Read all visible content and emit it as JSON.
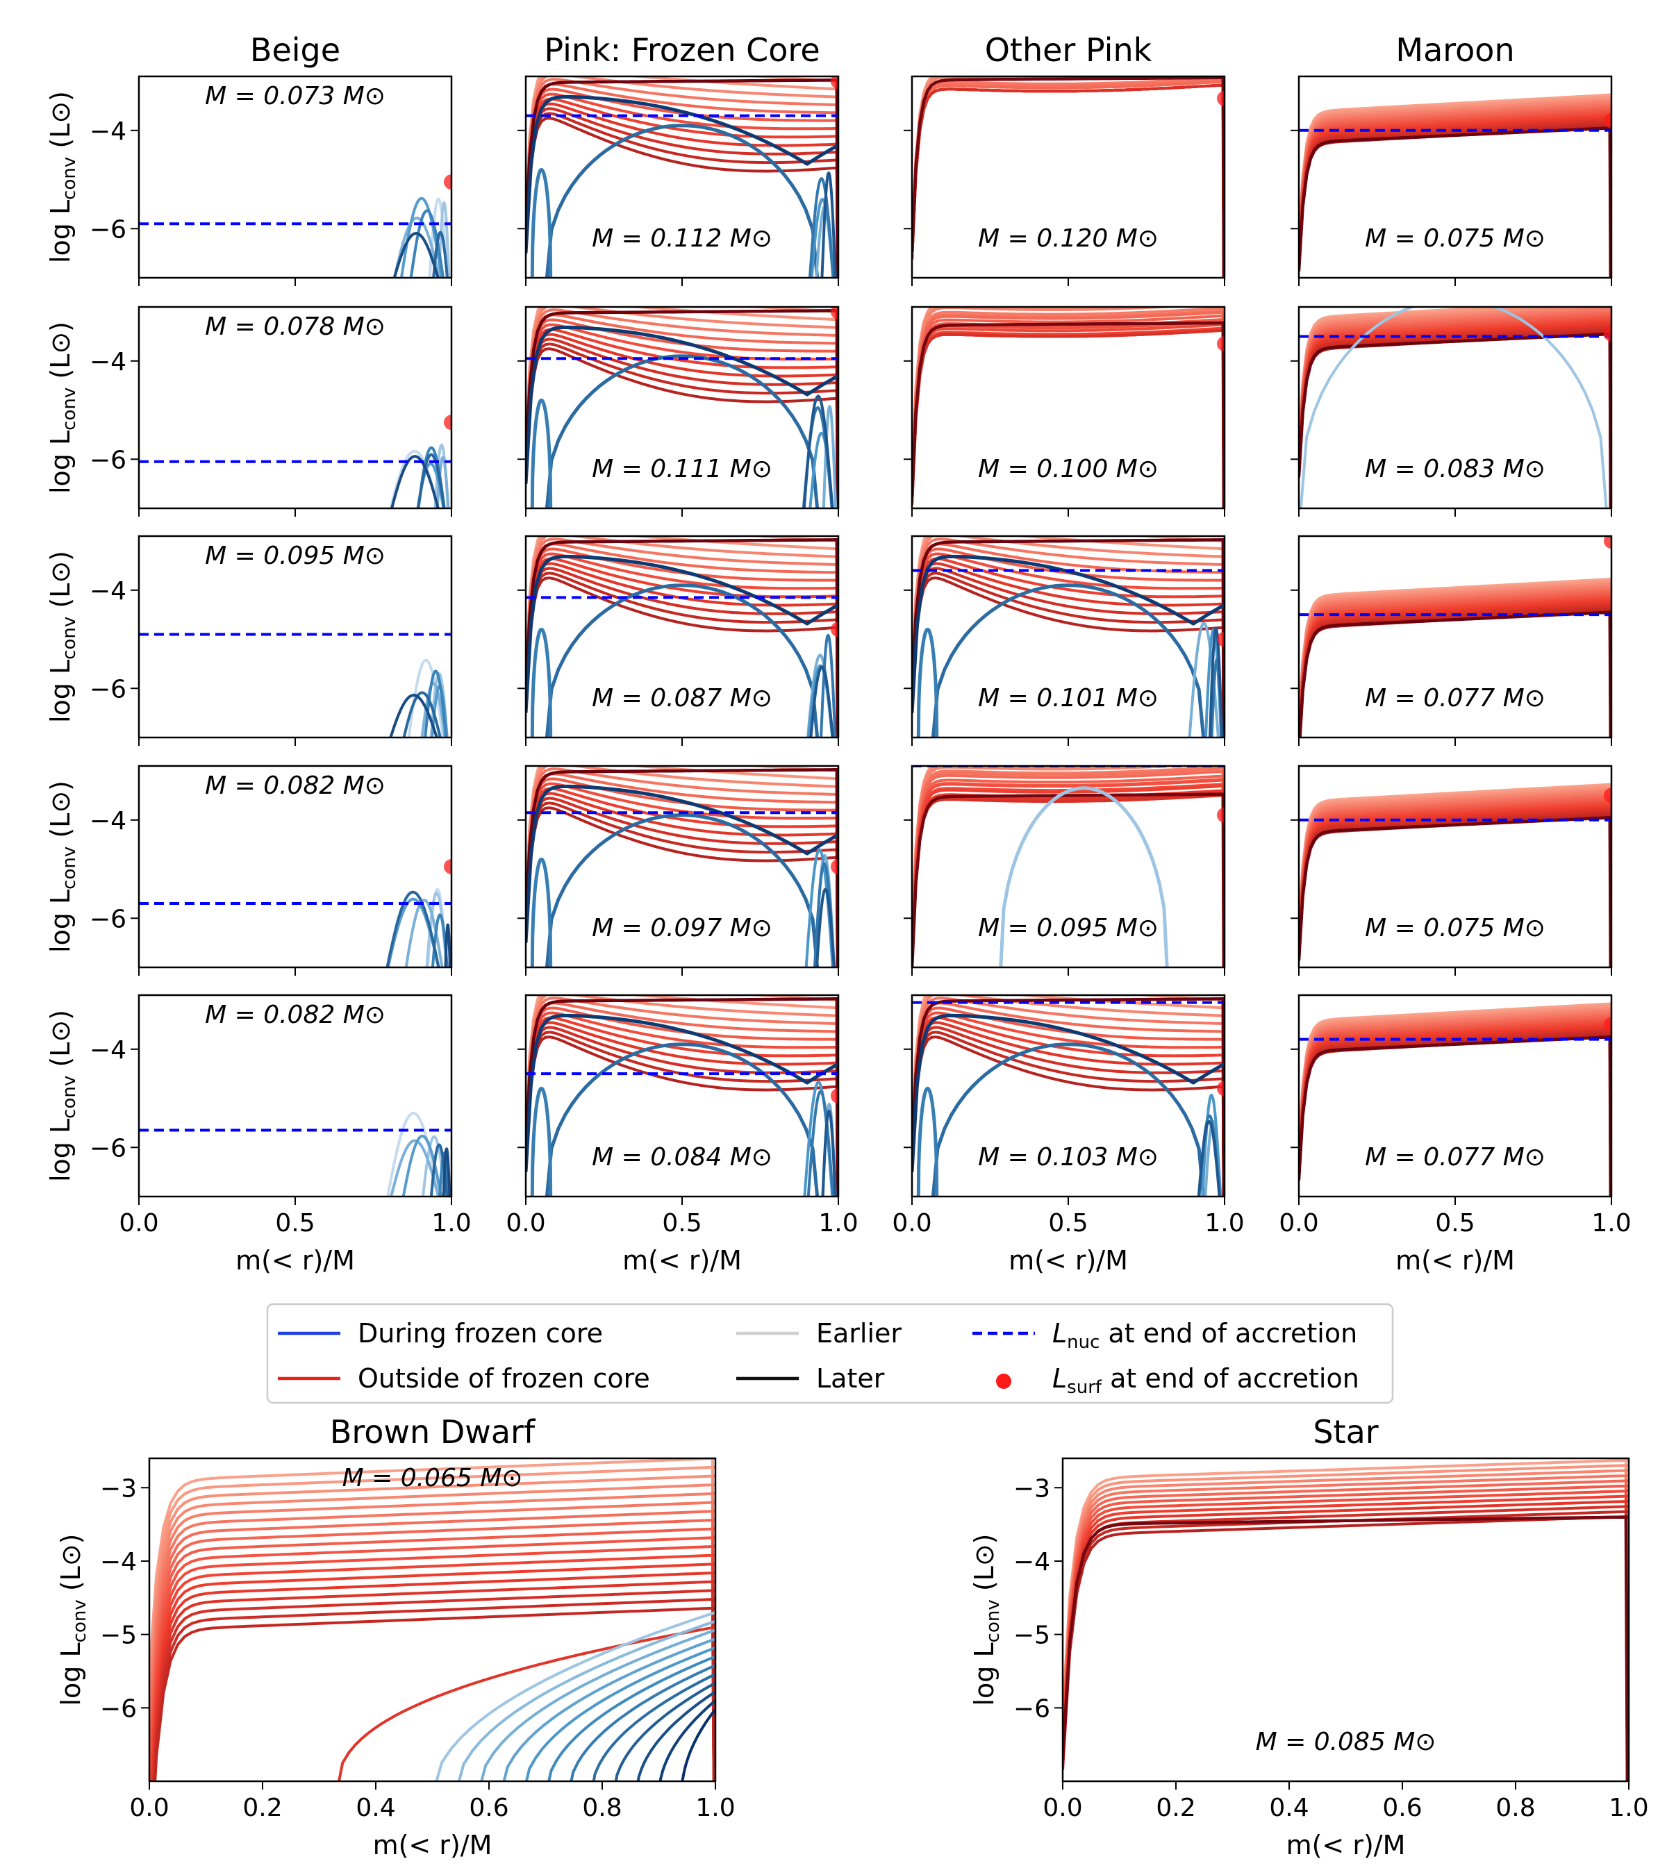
{
  "figure": {
    "xlabel": "m(< r)/M",
    "ylabel": "log L_conv (L⊙)",
    "ylabel_main": "log L",
    "ylabel_sub": "conv",
    "ylabel_unit": "(L⊙)"
  },
  "colors": {
    "during_frozen": "#1f3fe0",
    "outside_frozen": "#e8231c",
    "earlier": "#d0d0d0",
    "later": "#111111",
    "lnuc": "#0000ff",
    "lsurf": "#ff1a1a",
    "reds_light": "#fcbba1",
    "reds_mid": "#ef3b2c",
    "reds_dark": "#67000d",
    "blues_light": "#c6dbef",
    "blues_mid": "#4292c6",
    "blues_dark": "#08306b"
  },
  "legend": {
    "items": [
      {
        "label": "During frozen core",
        "kind": "line",
        "color": "#1f3fe0"
      },
      {
        "label": "Outside of frozen core",
        "kind": "line",
        "color": "#e8231c"
      },
      {
        "label": "Earlier",
        "kind": "line",
        "color": "#d0d0d0"
      },
      {
        "label": "Later",
        "kind": "line",
        "color": "#111111"
      },
      {
        "label_main": "L",
        "label_sub": "nuc",
        "label_rest": " at end of accretion",
        "kind": "dashed",
        "color": "#0000ff"
      },
      {
        "label_main": "L",
        "label_sub": "surf",
        "label_rest": " at end of accretion",
        "kind": "dot",
        "color": "#ff1a1a"
      }
    ]
  },
  "chart_data": [
    {
      "type": "line",
      "panel": "grid",
      "row": 0,
      "col": 0,
      "title": "Beige",
      "mass_label": "M = 0.073 M⊙",
      "mass": 0.073,
      "ylim": [
        -7,
        -2.9
      ],
      "xlim": [
        0,
        1
      ],
      "lnuc": -5.9,
      "lsurf": -5.05,
      "regime": "blue_edge"
    },
    {
      "type": "line",
      "panel": "grid",
      "row": 0,
      "col": 1,
      "title": "Pink: Frozen Core",
      "mass_label": "M = 0.112 M⊙",
      "mass": 0.112,
      "ylim": [
        -7,
        -2.9
      ],
      "xlim": [
        0,
        1
      ],
      "lnuc": -3.7,
      "lsurf": -3.0,
      "regime": "frozen_core"
    },
    {
      "type": "line",
      "panel": "grid",
      "row": 0,
      "col": 2,
      "title": "Other Pink",
      "mass_label": "M = 0.120 M⊙",
      "mass": 0.12,
      "ylim": [
        -7,
        -2.9
      ],
      "xlim": [
        0,
        1
      ],
      "lnuc": null,
      "lsurf": -3.35,
      "regime": "red_plateau"
    },
    {
      "type": "line",
      "panel": "grid",
      "row": 0,
      "col": 3,
      "title": "Maroon",
      "mass_label": "M = 0.075 M⊙",
      "mass": 0.075,
      "ylim": [
        -7,
        -2.9
      ],
      "xlim": [
        0,
        1
      ],
      "lnuc": -4.0,
      "lsurf": -3.8,
      "regime": "maroon"
    },
    {
      "type": "line",
      "panel": "grid",
      "row": 1,
      "col": 0,
      "mass_label": "M = 0.078 M⊙",
      "mass": 0.078,
      "ylim": [
        -7,
        -2.9
      ],
      "xlim": [
        0,
        1
      ],
      "lnuc": -6.05,
      "lsurf": -5.25,
      "regime": "blue_edge"
    },
    {
      "type": "line",
      "panel": "grid",
      "row": 1,
      "col": 1,
      "mass_label": "M = 0.111 M⊙",
      "mass": 0.111,
      "ylim": [
        -7,
        -2.9
      ],
      "xlim": [
        0,
        1
      ],
      "lnuc": -3.95,
      "lsurf": -3.0,
      "regime": "frozen_core"
    },
    {
      "type": "line",
      "panel": "grid",
      "row": 1,
      "col": 2,
      "mass_label": "M = 0.100 M⊙",
      "mass": 0.1,
      "ylim": [
        -7,
        -2.9
      ],
      "xlim": [
        0,
        1
      ],
      "lnuc": null,
      "lsurf": -3.65,
      "regime": "red_plateau"
    },
    {
      "type": "line",
      "panel": "grid",
      "row": 1,
      "col": 3,
      "mass_label": "M = 0.083 M⊙",
      "mass": 0.083,
      "ylim": [
        -7,
        -2.9
      ],
      "xlim": [
        0,
        1
      ],
      "lnuc": -3.5,
      "lsurf": -3.45,
      "regime": "maroon"
    },
    {
      "type": "line",
      "panel": "grid",
      "row": 2,
      "col": 0,
      "mass_label": "M = 0.095 M⊙",
      "mass": 0.095,
      "ylim": [
        -7,
        -2.9
      ],
      "xlim": [
        0,
        1
      ],
      "lnuc": -4.9,
      "lsurf": null,
      "regime": "blue_edge"
    },
    {
      "type": "line",
      "panel": "grid",
      "row": 2,
      "col": 1,
      "mass_label": "M = 0.087 M⊙",
      "mass": 0.087,
      "ylim": [
        -7,
        -2.9
      ],
      "xlim": [
        0,
        1
      ],
      "lnuc": -4.15,
      "lsurf": -4.8,
      "regime": "frozen_core"
    },
    {
      "type": "line",
      "panel": "grid",
      "row": 2,
      "col": 2,
      "mass_label": "M = 0.101 M⊙",
      "mass": 0.101,
      "ylim": [
        -7,
        -2.9
      ],
      "xlim": [
        0,
        1
      ],
      "lnuc": -3.6,
      "lsurf": -5.0,
      "regime": "frozen_core"
    },
    {
      "type": "line",
      "panel": "grid",
      "row": 2,
      "col": 3,
      "mass_label": "M = 0.077 M⊙",
      "mass": 0.077,
      "ylim": [
        -7,
        -2.9
      ],
      "xlim": [
        0,
        1
      ],
      "lnuc": -4.5,
      "lsurf": -3.0,
      "regime": "maroon"
    },
    {
      "type": "line",
      "panel": "grid",
      "row": 3,
      "col": 0,
      "mass_label": "M = 0.082 M⊙",
      "mass": 0.082,
      "ylim": [
        -7,
        -2.9
      ],
      "xlim": [
        0,
        1
      ],
      "lnuc": -5.7,
      "lsurf": -4.95,
      "regime": "blue_edge"
    },
    {
      "type": "line",
      "panel": "grid",
      "row": 3,
      "col": 1,
      "mass_label": "M = 0.097 M⊙",
      "mass": 0.097,
      "ylim": [
        -7,
        -2.9
      ],
      "xlim": [
        0,
        1
      ],
      "lnuc": -3.85,
      "lsurf": -4.95,
      "regime": "frozen_core"
    },
    {
      "type": "line",
      "panel": "grid",
      "row": 3,
      "col": 2,
      "mass_label": "M = 0.095 M⊙",
      "mass": 0.095,
      "ylim": [
        -7,
        -2.9
      ],
      "xlim": [
        0,
        1
      ],
      "lnuc": -2.9,
      "lsurf": -3.9,
      "regime": "red_plateau"
    },
    {
      "type": "line",
      "panel": "grid",
      "row": 3,
      "col": 3,
      "mass_label": "M = 0.075 M⊙",
      "mass": 0.075,
      "ylim": [
        -7,
        -2.9
      ],
      "xlim": [
        0,
        1
      ],
      "lnuc": -4.0,
      "lsurf": -3.5,
      "regime": "maroon"
    },
    {
      "type": "line",
      "panel": "grid",
      "row": 4,
      "col": 0,
      "mass_label": "M = 0.082 M⊙",
      "mass": 0.082,
      "ylim": [
        -7,
        -2.9
      ],
      "xlim": [
        0,
        1
      ],
      "lnuc": -5.65,
      "lsurf": null,
      "regime": "blue_edge"
    },
    {
      "type": "line",
      "panel": "grid",
      "row": 4,
      "col": 1,
      "mass_label": "M = 0.084 M⊙",
      "mass": 0.084,
      "ylim": [
        -7,
        -2.9
      ],
      "xlim": [
        0,
        1
      ],
      "lnuc": -4.5,
      "lsurf": -4.95,
      "regime": "frozen_core"
    },
    {
      "type": "line",
      "panel": "grid",
      "row": 4,
      "col": 2,
      "mass_label": "M = 0.103 M⊙",
      "mass": 0.103,
      "ylim": [
        -7,
        -2.9
      ],
      "xlim": [
        0,
        1
      ],
      "lnuc": -3.05,
      "lsurf": -4.8,
      "regime": "frozen_core"
    },
    {
      "type": "line",
      "panel": "grid",
      "row": 4,
      "col": 3,
      "mass_label": "M = 0.077 M⊙",
      "mass": 0.077,
      "ylim": [
        -7,
        -2.9
      ],
      "xlim": [
        0,
        1
      ],
      "lnuc": -3.8,
      "lsurf": -3.5,
      "regime": "maroon"
    },
    {
      "type": "line",
      "panel": "large",
      "id": "bd",
      "title": "Brown Dwarf",
      "mass_label": "M = 0.065 M⊙",
      "mass": 0.065,
      "ylim": [
        -7,
        -2.6
      ],
      "xlim": [
        0,
        1
      ],
      "lnuc": null,
      "lsurf": null,
      "regime": "brown_dwarf"
    },
    {
      "type": "line",
      "panel": "large",
      "id": "star",
      "title": "Star",
      "mass_label": "M = 0.085 M⊙",
      "mass": 0.085,
      "ylim": [
        -7,
        -2.6
      ],
      "xlim": [
        0,
        1
      ],
      "lnuc": null,
      "lsurf": null,
      "regime": "star"
    }
  ]
}
